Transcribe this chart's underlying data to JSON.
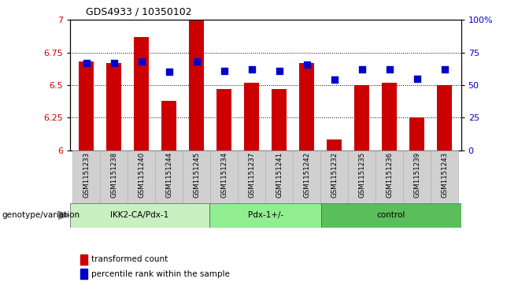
{
  "title": "GDS4933 / 10350102",
  "samples": [
    "GSM1151233",
    "GSM1151238",
    "GSM1151240",
    "GSM1151244",
    "GSM1151245",
    "GSM1151234",
    "GSM1151237",
    "GSM1151241",
    "GSM1151242",
    "GSM1151232",
    "GSM1151235",
    "GSM1151236",
    "GSM1151239",
    "GSM1151243"
  ],
  "red_values": [
    6.68,
    6.67,
    6.87,
    6.38,
    7.0,
    6.47,
    6.52,
    6.47,
    6.67,
    6.08,
    6.5,
    6.52,
    6.25,
    6.5
  ],
  "blue_values": [
    6.67,
    6.67,
    6.68,
    6.6,
    6.68,
    6.61,
    6.62,
    6.61,
    6.66,
    6.54,
    6.62,
    6.62,
    6.55,
    6.62
  ],
  "groups": [
    {
      "label": "IKK2-CA/Pdx-1",
      "start": 0,
      "end": 5,
      "color": "#c8f0c0"
    },
    {
      "label": "Pdx-1+/-",
      "start": 5,
      "end": 9,
      "color": "#90ee90"
    },
    {
      "label": "control",
      "start": 9,
      "end": 14,
      "color": "#5abf5a"
    }
  ],
  "ylim_left": [
    6.0,
    7.0
  ],
  "ylim_right": [
    0,
    100
  ],
  "yticks_left": [
    6.0,
    6.25,
    6.5,
    6.75,
    7.0
  ],
  "ytick_labels_left": [
    "6",
    "6.25",
    "6.5",
    "6.75",
    "7"
  ],
  "yticks_right": [
    0,
    25,
    50,
    75,
    100
  ],
  "ytick_labels_right": [
    "0",
    "25",
    "50",
    "75",
    "100%"
  ],
  "bar_color": "#cc0000",
  "dot_color": "#0000cc",
  "bar_width": 0.55,
  "dot_size": 28,
  "xlabel_genotype": "genotype/variation",
  "legend_red": "transformed count",
  "legend_blue": "percentile rank within the sample",
  "bg_xtick": "#d0d0d0",
  "grid_dotted_vals": [
    6.25,
    6.5,
    6.75
  ]
}
